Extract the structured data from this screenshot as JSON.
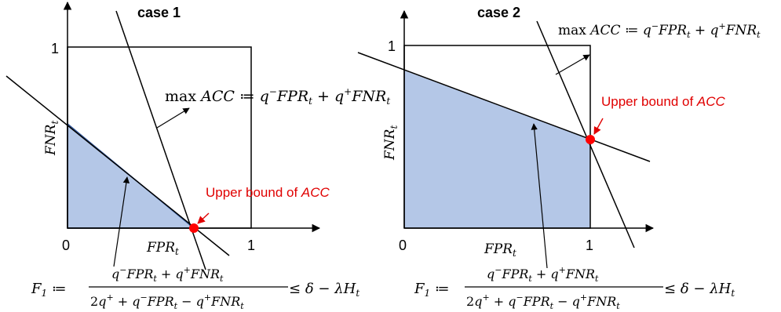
{
  "case1": {
    "title": "case 1",
    "tick_y1": "1",
    "tick_x0": "0",
    "tick_x1": "1",
    "ylabel": "FNR",
    "ylabel_sub": "t",
    "xlabel": "FPR",
    "xlabel_sub": "t",
    "objective": {
      "max": "max",
      "acc": "ACC",
      "assign": " ≔ ",
      "q": "q",
      "minus_sup": "−",
      "plus_sup": "+",
      "fpr": "FPR",
      "fnr": "FNR",
      "sub": "t",
      "plus": " + "
    },
    "upper_bound_prefix": "Upper bound of ",
    "upper_bound_acc": "ACC"
  },
  "case2": {
    "title": "case 2",
    "tick_y1": "1",
    "tick_x0": "0",
    "tick_x1": "1",
    "ylabel": "FNR",
    "ylabel_sub": "t",
    "xlabel": "FPR",
    "xlabel_sub": "t",
    "objective": {
      "max": "max",
      "acc": "ACC",
      "assign": " ≔ ",
      "q": "q",
      "minus_sup": "−",
      "plus_sup": "+",
      "fpr": "FPR",
      "fnr": "FNR",
      "sub": "t",
      "plus": " + "
    },
    "upper_bound_prefix": "Upper bound of ",
    "upper_bound_acc": "ACC"
  },
  "formula": {
    "lhs": "F",
    "lhs_sub": "1",
    "assign": " ≔ ",
    "num_q1": "q",
    "num_sup1": "−",
    "num_fpr": "FPR",
    "num_sub1": "t",
    "num_plus": " + ",
    "num_q2": "q",
    "num_sup2": "+",
    "num_fnr": "FNR",
    "num_sub2": "t",
    "den_two": "2",
    "den_q1": "q",
    "den_sup1": "+",
    "den_plus": " + ",
    "den_q2": "q",
    "den_sup2": "−",
    "den_fpr": "FPR",
    "den_sub1": "t",
    "den_minus": " − ",
    "den_q3": "q",
    "den_sup3": "+",
    "den_fnr": "FNR",
    "den_sub2": "t",
    "rhs_leq": " ≤ ",
    "rhs_delta": "δ",
    "rhs_minus": " − ",
    "rhs_lambda": "λ",
    "rhs_h": "H",
    "rhs_sub": "t"
  },
  "colors": {
    "fill": "#b4c7e7",
    "line": "#000000",
    "point": "#ff0000",
    "accent_red": "#e00000"
  }
}
